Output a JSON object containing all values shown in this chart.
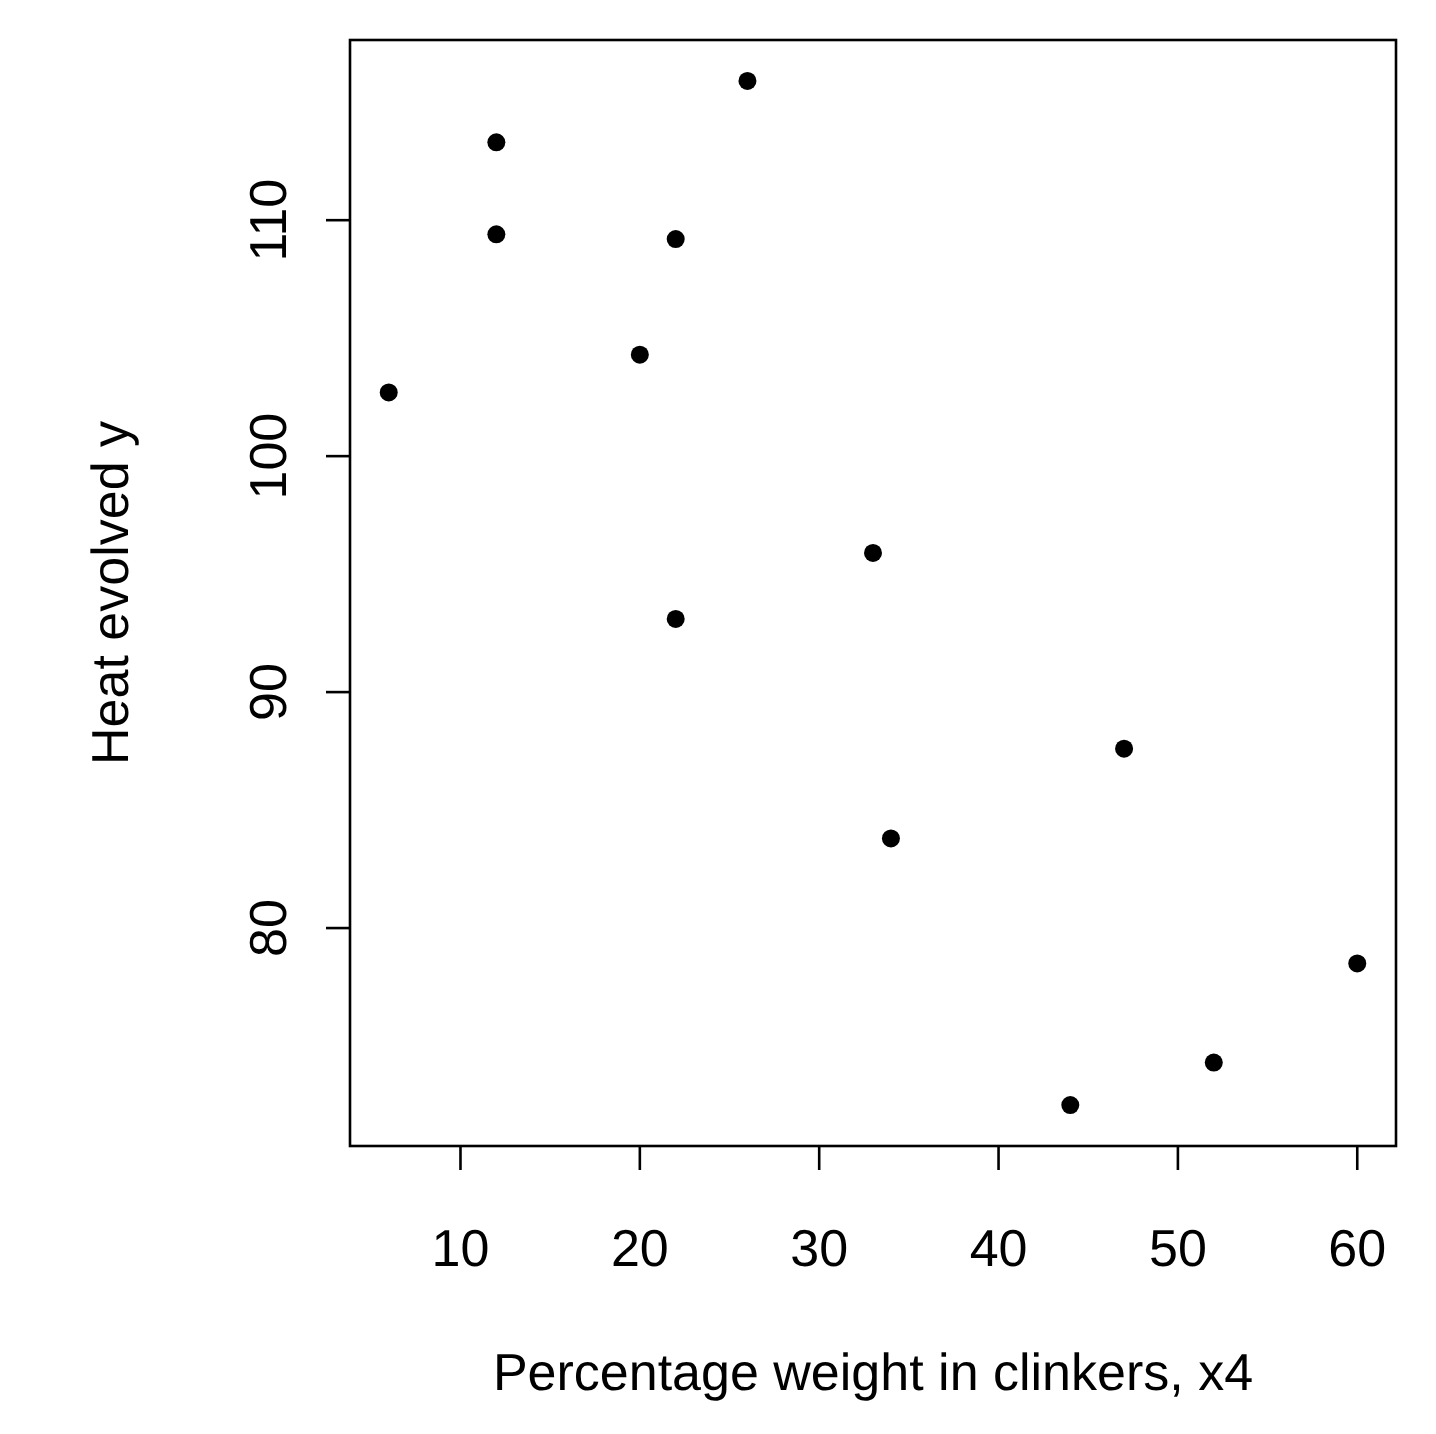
{
  "chart_data": {
    "type": "scatter",
    "xlabel": "Percentage weight in clinkers, x4",
    "ylabel": "Heat evolved y",
    "x": [
      60,
      52,
      20,
      47,
      33,
      22,
      6,
      44,
      22,
      26,
      34,
      12,
      12
    ],
    "values": [
      78.5,
      74.3,
      104.3,
      87.6,
      95.9,
      109.2,
      102.7,
      72.5,
      93.1,
      115.9,
      83.8,
      113.3,
      109.4
    ],
    "color": "#000000",
    "marker": "circle",
    "grid": false,
    "xlim": [
      3.84,
      62.16
    ],
    "ylim": [
      70.764,
      117.636
    ],
    "xticks": [
      10,
      20,
      30,
      40,
      50,
      60
    ],
    "yticks": [
      80,
      90,
      100,
      110
    ]
  }
}
